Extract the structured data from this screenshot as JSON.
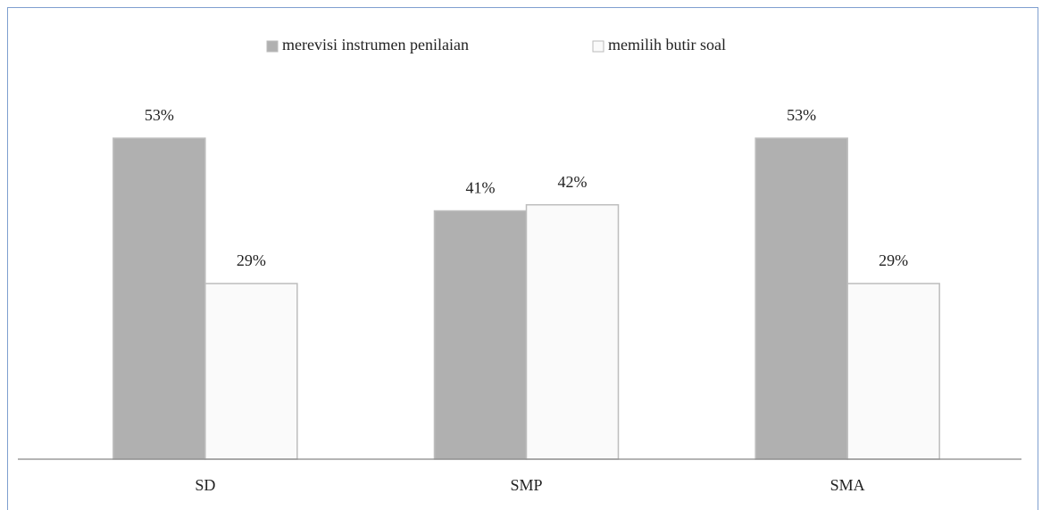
{
  "chart_data": {
    "type": "bar",
    "categories": [
      "SD",
      "SMP",
      "SMA"
    ],
    "series": [
      {
        "name": "merevisi instrumen penilaian",
        "color": "#b0b0b0",
        "values": [
          53,
          41,
          53
        ],
        "value_labels": [
          "53%",
          "41%",
          "53%"
        ]
      },
      {
        "name": "memilih butir soal",
        "color": "#fafafa",
        "values": [
          29,
          42,
          29
        ],
        "value_labels": [
          "29%",
          "42%",
          "29%"
        ]
      }
    ],
    "legend": "top"
  }
}
